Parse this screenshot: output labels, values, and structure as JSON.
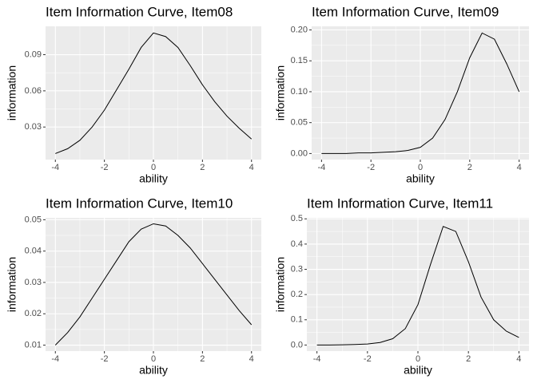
{
  "chart_data": [
    {
      "type": "line",
      "title": "Item Information Curve, Item08",
      "x_label": "ability",
      "y_label": "information",
      "x": [
        -4,
        -3.5,
        -3,
        -2.5,
        -2,
        -1.5,
        -1,
        -0.5,
        0,
        0.5,
        1,
        1.5,
        2,
        2.5,
        3,
        3.5,
        4
      ],
      "values": [
        0.008,
        0.012,
        0.019,
        0.03,
        0.044,
        0.061,
        0.078,
        0.096,
        0.108,
        0.105,
        0.096,
        0.081,
        0.065,
        0.051,
        0.039,
        0.029,
        0.02
      ],
      "color": "#000000",
      "xlim": [
        -4.4,
        4.4
      ],
      "xticks": [
        -4,
        -2,
        0,
        2,
        4
      ],
      "ylim": [
        0.003,
        0.1135
      ],
      "yticks": [
        0.03,
        0.06,
        0.09
      ],
      "grid": true
    },
    {
      "type": "line",
      "title": "Item Information Curve, Item09",
      "x_label": "ability",
      "y_label": "information",
      "x": [
        -4,
        -3.5,
        -3,
        -2.5,
        -2,
        -1.5,
        -1,
        -0.5,
        0,
        0.5,
        1,
        1.5,
        2,
        2.5,
        3,
        3.5,
        4
      ],
      "values": [
        0,
        0,
        0,
        0.001,
        0.001,
        0.002,
        0.003,
        0.005,
        0.01,
        0.025,
        0.055,
        0.1,
        0.155,
        0.195,
        0.185,
        0.145,
        0.1
      ],
      "color": "#000000",
      "xlim": [
        -4.4,
        4.4
      ],
      "xticks": [
        -4,
        -2,
        0,
        2,
        4
      ],
      "ylim": [
        -0.0098,
        0.2058
      ],
      "yticks": [
        {
          "value": 0,
          "label": "0.00"
        },
        0.05,
        {
          "value": 0.1,
          "label": "0.10"
        },
        0.15,
        {
          "value": 0.2,
          "label": "0.20"
        }
      ],
      "grid": true
    },
    {
      "type": "line",
      "title": "Item Information Curve, Item10",
      "x_label": "ability",
      "y_label": "information",
      "x": [
        -4,
        -3.5,
        -3,
        -2.5,
        -2,
        -1.5,
        -1,
        -0.5,
        0,
        0.5,
        1,
        1.5,
        2,
        2.5,
        3,
        3.5,
        4
      ],
      "values": [
        0.01,
        0.014,
        0.019,
        0.025,
        0.031,
        0.037,
        0.043,
        0.047,
        0.0487,
        0.048,
        0.045,
        0.041,
        0.036,
        0.031,
        0.026,
        0.021,
        0.0165
      ],
      "color": "#000000",
      "xlim": [
        -4.4,
        4.4
      ],
      "xticks": [
        -4,
        -2,
        0,
        2,
        4
      ],
      "ylim": [
        0.0081,
        0.0506
      ],
      "yticks": [
        0.01,
        0.02,
        0.03,
        0.04,
        0.05
      ],
      "grid": true
    },
    {
      "type": "line",
      "title": "Item Information Curve, Item11",
      "x_label": "ability",
      "y_label": "information",
      "x": [
        -4,
        -3.5,
        -3,
        -2.5,
        -2,
        -1.5,
        -1,
        -0.5,
        0,
        0.5,
        1,
        1.5,
        2,
        2.5,
        3,
        3.5,
        4
      ],
      "values": [
        0,
        0,
        0.001,
        0.002,
        0.004,
        0.01,
        0.025,
        0.065,
        0.16,
        0.32,
        0.47,
        0.45,
        0.33,
        0.19,
        0.1,
        0.055,
        0.03
      ],
      "color": "#000000",
      "xlim": [
        -4.4,
        4.4
      ],
      "xticks": [
        -4,
        -2,
        0,
        2,
        4
      ],
      "ylim": [
        -0.024,
        0.504
      ],
      "yticks": [
        {
          "value": 0,
          "label": "0.0"
        },
        0.1,
        0.2,
        0.3,
        0.4,
        0.5
      ],
      "grid": true
    }
  ]
}
